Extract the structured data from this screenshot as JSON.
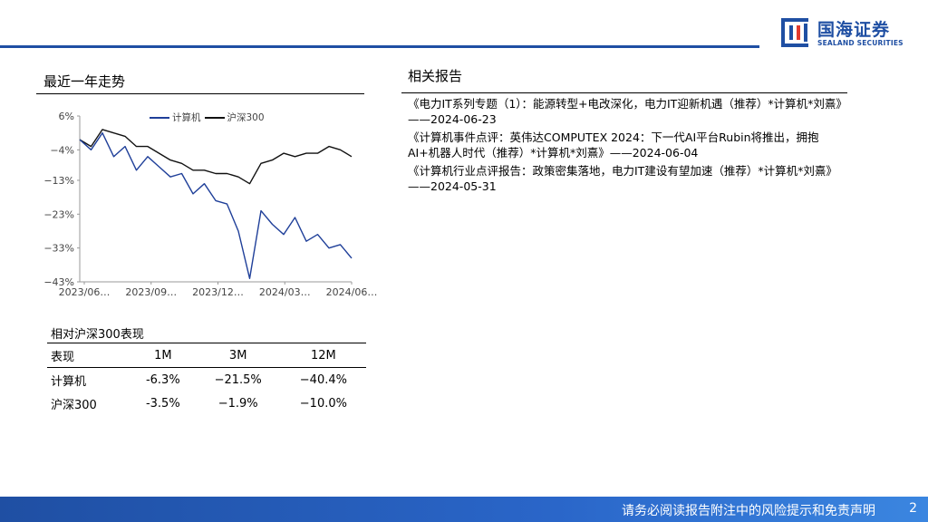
{
  "brand": {
    "name_cn": "国海证券",
    "name_en": "SEALAND SECURITIES",
    "primary_color": "#1f4fa3"
  },
  "left_title": "最近一年走势",
  "right_title": "相关报告",
  "legend": {
    "series1": "计算机",
    "series2": "沪深300"
  },
  "chart_data": {
    "type": "line",
    "title": "",
    "xlabel": "",
    "ylabel": "",
    "x_tick_labels": [
      "2023/06…",
      "2023/09…",
      "2023/12…",
      "2024/03…",
      "2024/06…"
    ],
    "y_tick_labels": [
      "6%",
      "−4%",
      "−13%",
      "−23%",
      "−33%",
      "−43%"
    ],
    "y_ticks": [
      6,
      -4,
      -13,
      -23,
      -33,
      -43
    ],
    "ylim": [
      -43,
      6
    ],
    "x_unit": "trading days since 2023/06",
    "x": [
      0,
      10,
      20,
      30,
      40,
      50,
      60,
      70,
      80,
      90,
      100,
      110,
      120,
      130,
      140,
      150,
      160,
      170,
      180,
      190,
      200,
      210,
      220,
      230,
      240
    ],
    "series": [
      {
        "name": "计算机",
        "color": "#1f3f99",
        "values": [
          -1,
          -4,
          1,
          -6,
          -3,
          -10,
          -6,
          -9,
          -12,
          -11,
          -17,
          -14,
          -19,
          -20,
          -28,
          -42,
          -22,
          -26,
          -29,
          -24,
          -31,
          -29,
          -33,
          -32,
          -36
        ]
      },
      {
        "name": "沪深300",
        "color": "#111111",
        "values": [
          -1,
          -3,
          2,
          1,
          0,
          -3,
          -3,
          -5,
          -7,
          -8,
          -10,
          -10,
          -11,
          -11,
          -12,
          -14,
          -8,
          -7,
          -5,
          -6,
          -5,
          -5,
          -3,
          -4,
          -6
        ]
      }
    ],
    "grid": false,
    "legend_position": "top"
  },
  "performance": {
    "title": "相对沪深300表现",
    "headers": [
      "表现",
      "1M",
      "3M",
      "12M"
    ],
    "rows": [
      {
        "label": "计算机",
        "m1": "-6.3%",
        "m3": "−21.5%",
        "m12": "−40.4%"
      },
      {
        "label": "沪深300",
        "m1": "-3.5%",
        "m3": "−1.9%",
        "m12": "−10.0%"
      }
    ]
  },
  "reports": [
    "《电力IT系列专题（1）：能源转型+电改深化，电力IT迎新机遇（推荐）*计算机*刘熹》——2024-06-23",
    "《计算机事件点评：英伟达COMPUTEX 2024：下一代AI平台Rubin将推出，拥抱AI+机器人时代（推荐）*计算机*刘熹》——2024-06-04",
    "《计算机行业点评报告：政策密集落地，电力IT建设有望加速（推荐）*计算机*刘熹》——2024-05-31"
  ],
  "footer": {
    "disclaimer": "请务必阅读报告附注中的风险提示和免责声明",
    "page": "2"
  }
}
